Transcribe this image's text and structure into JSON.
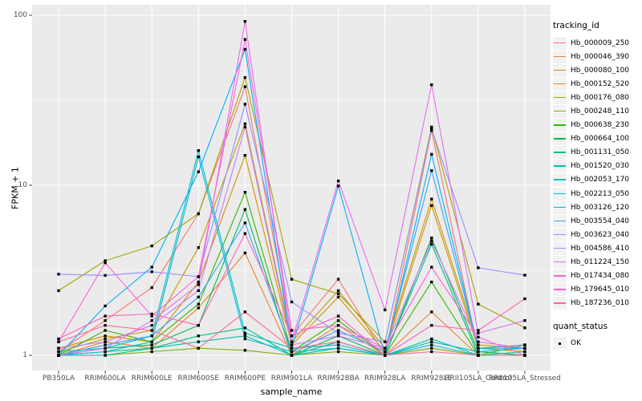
{
  "chart_data": {
    "type": "line",
    "title": "",
    "xlabel": "sample_name",
    "ylabel": "FPKM + 1",
    "y_scale": "log10",
    "ylim": [
      0.8,
      110
    ],
    "grid": true,
    "y_ticks": [
      1,
      10,
      100
    ],
    "y_tick_labels": [
      "1",
      "10",
      "100"
    ],
    "y_minor_ticks": [
      3.1623,
      31.623
    ],
    "x_categories": [
      "PB350LA",
      "RRIM600LA",
      "RRIM600LE",
      "RRIM600SE",
      "RRIM600PE",
      "RRIM901LA",
      "RRIM928BA",
      "RRIM928LA",
      "RRIM928LE",
      "RRII105LA_Control",
      "RRII105LA_Stressed"
    ],
    "legend": {
      "position": "right",
      "series_title": "tracking_id",
      "status_title": "quant_status",
      "status_label": "OK"
    },
    "marker": "black-square",
    "colors": {
      "panel_bg": "#EBEBEB",
      "grid": "#FFFFFF",
      "tick_text": "#4D4D4D",
      "axis_text": "#000000",
      "marker": "#000000",
      "legend_key_bg": "#F2F2F2",
      "tick_mark": "#333333"
    },
    "series": [
      {
        "name": "Hb_000009_250",
        "color": "#F8766D",
        "values": [
          1.05,
          1.6,
          2.5,
          6.8,
          38,
          1.3,
          2.8,
          1.0,
          21,
          1.05,
          1.0
        ]
      },
      {
        "name": "Hb_000046_390",
        "color": "#EA8331",
        "values": [
          1.0,
          1.2,
          1.1,
          1.9,
          4.0,
          1.0,
          1.5,
          1.0,
          1.8,
          1.0,
          1.0
        ]
      },
      {
        "name": "Hb_000080_100",
        "color": "#D89000",
        "values": [
          1.1,
          1.3,
          1.2,
          2.7,
          15,
          1.15,
          2.2,
          1.05,
          7.6,
          1.1,
          1.05
        ]
      },
      {
        "name": "Hb_000152_520",
        "color": "#C09B00",
        "values": [
          1.05,
          1.25,
          1.4,
          4.3,
          23,
          1.2,
          2.4,
          1.1,
          8.3,
          1.15,
          1.1
        ]
      },
      {
        "name": "Hb_000176_080",
        "color": "#A3A500",
        "values": [
          2.4,
          3.6,
          4.4,
          6.8,
          43,
          2.8,
          2.3,
          1.2,
          22,
          2.0,
          1.45
        ]
      },
      {
        "name": "Hb_000248_110",
        "color": "#7CAE00",
        "values": [
          1.0,
          1.0,
          1.05,
          1.1,
          1.07,
          1.0,
          1.05,
          1.0,
          1.1,
          1.0,
          1.15
        ]
      },
      {
        "name": "Hb_000638_230",
        "color": "#39B600",
        "values": [
          1.0,
          1.4,
          1.2,
          2.0,
          9.1,
          1.05,
          1.6,
          1.0,
          2.7,
          1.0,
          1.0
        ]
      },
      {
        "name": "Hb_000664_100",
        "color": "#00BB4E",
        "values": [
          1.0,
          1.1,
          1.15,
          1.5,
          7.2,
          1.0,
          1.3,
          1.0,
          4.9,
          1.05,
          1.0
        ]
      },
      {
        "name": "Hb_001131_050",
        "color": "#00BF7D",
        "values": [
          1.0,
          1.05,
          1.1,
          1.3,
          1.45,
          1.0,
          1.2,
          1.0,
          4.5,
          1.0,
          1.0
        ]
      },
      {
        "name": "Hb_001520_030",
        "color": "#00C1A3",
        "values": [
          1.0,
          1.0,
          1.1,
          1.2,
          1.3,
          1.0,
          1.1,
          1.0,
          1.25,
          1.0,
          1.05
        ]
      },
      {
        "name": "Hb_002053_170",
        "color": "#00BFC4",
        "values": [
          1.05,
          1.1,
          1.3,
          16,
          1.35,
          1.1,
          1.15,
          1.0,
          1.2,
          1.05,
          1.1
        ]
      },
      {
        "name": "Hb_002213_050",
        "color": "#00BAE0",
        "values": [
          1.0,
          1.05,
          1.2,
          14.7,
          1.25,
          1.05,
          1.1,
          1.0,
          1.15,
          1.0,
          1.0
        ]
      },
      {
        "name": "Hb_003126_120",
        "color": "#00B0F6",
        "values": [
          1.0,
          1.95,
          3.3,
          12,
          63,
          1.1,
          9.9,
          1.0,
          15.2,
          1.1,
          1.1
        ]
      },
      {
        "name": "Hb_003554_040",
        "color": "#35A2FF",
        "values": [
          1.0,
          1.15,
          1.3,
          2.2,
          6.0,
          1.05,
          1.4,
          1.05,
          12.2,
          1.1,
          1.15
        ]
      },
      {
        "name": "Hb_003623_040",
        "color": "#9590FF",
        "values": [
          3.0,
          2.95,
          3.1,
          2.9,
          30,
          2.06,
          1.35,
          1.2,
          21.5,
          3.27,
          2.96
        ]
      },
      {
        "name": "Hb_004586_410",
        "color": "#C77CFF",
        "values": [
          1.1,
          1.2,
          1.5,
          2.4,
          22,
          1.15,
          1.3,
          1.1,
          4.7,
          1.2,
          1.1
        ]
      },
      {
        "name": "Hb_011224_150",
        "color": "#E76BF3",
        "values": [
          1.0,
          1.1,
          1.6,
          2.6,
          92,
          1.2,
          10.6,
          1.85,
          39,
          1.35,
          1.6
        ]
      },
      {
        "name": "Hb_017434_080",
        "color": "#FA62DB",
        "values": [
          1.2,
          3.5,
          1.7,
          2.9,
          72,
          1.4,
          1.5,
          1.1,
          3.3,
          1.28,
          1.0
        ]
      },
      {
        "name": "Hb_179645_010",
        "color": "#FF62BC",
        "values": [
          1.25,
          1.7,
          1.75,
          1.5,
          5.2,
          1.3,
          1.7,
          1.0,
          1.5,
          1.4,
          2.15
        ]
      },
      {
        "name": "Hb_187236_010",
        "color": "#FF6A98",
        "values": [
          1.2,
          1.5,
          1.4,
          1.1,
          1.8,
          1.1,
          1.2,
          1.0,
          1.05,
          1.0,
          1.0
        ]
      }
    ]
  }
}
